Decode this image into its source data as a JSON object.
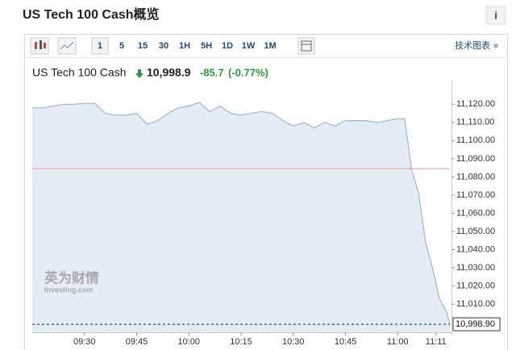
{
  "page": {
    "info": "i",
    "intervals": [
      "1",
      "5",
      "15",
      "30",
      "1H",
      "5H",
      "1D",
      "1W",
      "1M"
    ],
    "tech_chart": "技术图表",
    "instrument": "US Tech 100 Cash",
    "price": "10,998.9",
    "change": "-85.7",
    "change_pct": "(-0.77%)"
  },
  "chart_data": {
    "type": "area",
    "title": "US Tech 100 Cash概览",
    "x": [
      "09:15",
      "09:18",
      "09:21",
      "09:24",
      "09:27",
      "09:30",
      "09:33",
      "09:36",
      "09:39",
      "09:42",
      "09:45",
      "09:48",
      "09:51",
      "09:54",
      "09:57",
      "10:00",
      "10:03",
      "10:06",
      "10:09",
      "10:12",
      "10:15",
      "10:18",
      "10:21",
      "10:24",
      "10:27",
      "10:30",
      "10:33",
      "10:36",
      "10:39",
      "10:42",
      "10:45",
      "10:48",
      "10:51",
      "10:54",
      "10:57",
      "11:00",
      "11:02",
      "11:04",
      "11:06",
      "11:08",
      "11:10",
      "11:12",
      "11:14",
      "11:15"
    ],
    "values": [
      11118,
      11118,
      11119,
      11120,
      11120,
      11120.5,
      11120.5,
      11115,
      11114,
      11114,
      11115,
      11109,
      11111,
      11115,
      11118,
      11119,
      11121,
      11116,
      11119,
      11115,
      11114,
      11115,
      11116,
      11115,
      11111,
      11108,
      11110,
      11107,
      11110,
      11108,
      11111,
      11111,
      11111,
      11110,
      11111,
      11112,
      11112,
      11084,
      11071,
      11044,
      11030,
      11013,
      11006,
      10998.9
    ],
    "color": "#9ab7d3",
    "fill": "#e4edf6",
    "xlim": [
      "09:15",
      "11:15"
    ],
    "xticks": [
      "09:30",
      "09:45",
      "10:00",
      "10:15",
      "10:30",
      "10:45",
      "11:00",
      "11:11"
    ],
    "ylim": [
      10994.5,
      11133
    ],
    "yticks": [
      {
        "value": 11120,
        "label": "11,120.00"
      },
      {
        "value": 11110,
        "label": "11,110.00"
      },
      {
        "value": 11100,
        "label": "11,100.00"
      },
      {
        "value": 11090,
        "label": "11,090.00"
      },
      {
        "value": 11080,
        "label": "11,080.00"
      },
      {
        "value": 11070,
        "label": "11,070.00"
      },
      {
        "value": 11060,
        "label": "11,060.00"
      },
      {
        "value": 11050,
        "label": "11,050.00"
      },
      {
        "value": 11040,
        "label": "11,040.00"
      },
      {
        "value": 11030,
        "label": "11,030.00"
      },
      {
        "value": 11020,
        "label": "11,020.00"
      },
      {
        "value": 11010,
        "label": "11,010.00"
      }
    ],
    "reference_line": 11084.6,
    "reference_color": "#e39a9a",
    "last_value": {
      "value": 10998.9,
      "label": "10,998.90"
    },
    "watermark": [
      "英为财情",
      "Investing.com"
    ]
  }
}
